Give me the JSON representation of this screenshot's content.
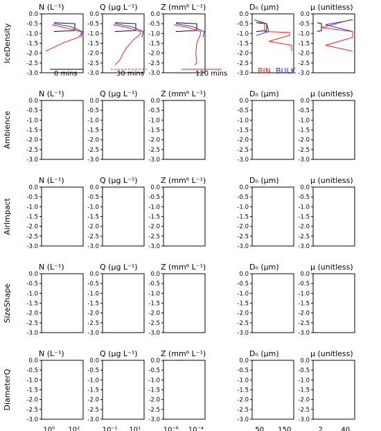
{
  "figure": {
    "rows": [
      {
        "label": "IceDensity"
      },
      {
        "label": "Ambience"
      },
      {
        "label": "AirImpact"
      },
      {
        "label": "SizeShape"
      },
      {
        "label": "DiameterQ"
      }
    ],
    "columns": [
      {
        "title": "N (L⁻¹)",
        "x_ticks": [
          "10⁰",
          "10²"
        ]
      },
      {
        "title": "Q (μg L⁻¹)",
        "x_ticks": [
          "10⁻¹",
          "10¹"
        ]
      },
      {
        "title": "Z (mm⁶ L⁻¹)",
        "x_ticks": [
          "10⁻⁶",
          "10⁻⁴"
        ]
      },
      {
        "title": "D₀ (μm)",
        "x_ticks": [
          "50",
          "150"
        ]
      },
      {
        "title": "μ (unitless)",
        "x_ticks": [
          "2",
          "40"
        ]
      }
    ],
    "legend": {
      "time_labels": [
        "0 mins",
        "30 mins",
        "120 mins"
      ],
      "scheme_labels": [
        "BIN",
        "BULK"
      ]
    }
  },
  "chart_data": {
    "type": "line",
    "y_axis": {
      "ylim": [
        -3.0,
        0.0
      ],
      "ticks": [
        "0.0",
        "-0.5",
        "-1.0",
        "-1.5",
        "-2.0",
        "-2.5",
        "-3.0"
      ]
    },
    "series_styles": [
      {
        "name": "BIN",
        "color": "#ee2222"
      },
      {
        "name": "BULK",
        "color": "#2233ee"
      }
    ],
    "time_colors": {
      "0 mins": "#000000"
    },
    "panels": [
      {
        "row": "IceDensity",
        "col": "N",
        "bin_120": {
          "x": [
            0.25,
            0.55,
            0.95,
            0.95,
            0.88,
            0.55,
            0.25,
            0.1
          ],
          "y": [
            -0.55,
            -0.7,
            -0.9,
            -1.05,
            -1.2,
            -1.45,
            -1.75,
            -1.9
          ]
        },
        "bulk_120": {
          "x": [
            0.3,
            0.7,
            0.98,
            0.95
          ],
          "y": [
            -0.5,
            -0.65,
            -0.9,
            -1.2
          ]
        },
        "bin_0": {
          "x": [
            0.3,
            0.8,
            0.8,
            0.3
          ],
          "y": [
            -0.45,
            -0.5,
            -0.85,
            -0.9
          ]
        }
      },
      {
        "row": "IceDensity",
        "col": "Q",
        "bin_120": {
          "x": [
            0.25,
            0.6,
            0.92,
            0.9,
            0.75,
            0.55,
            0.4,
            0.3
          ],
          "y": [
            -0.55,
            -0.7,
            -0.9,
            -1.05,
            -1.3,
            -1.8,
            -2.4,
            -2.6
          ]
        },
        "bulk_120": {
          "x": [
            0.3,
            0.7,
            0.98,
            0.95
          ],
          "y": [
            -0.5,
            -0.65,
            -0.9,
            -1.2
          ]
        },
        "bin_0": {
          "x": [
            0.3,
            0.8,
            0.8,
            0.3
          ],
          "y": [
            -0.45,
            -0.5,
            -0.85,
            -0.9
          ]
        }
      },
      {
        "row": "IceDensity",
        "col": "Z",
        "bin_120": {
          "x": [
            0.25,
            0.6,
            0.9,
            0.88,
            0.8,
            0.78,
            0.8,
            0.75
          ],
          "y": [
            -0.55,
            -0.7,
            -0.9,
            -1.1,
            -1.5,
            -2.0,
            -2.5,
            -2.6
          ]
        },
        "bulk_120": {
          "x": [
            0.3,
            0.7,
            0.98,
            0.95
          ],
          "y": [
            -0.5,
            -0.65,
            -0.9,
            -1.2
          ]
        },
        "bin_0": {
          "x": [
            0.3,
            0.8,
            0.8,
            0.3
          ],
          "y": [
            -0.45,
            -0.5,
            -0.85,
            -0.9
          ]
        }
      },
      {
        "row": "IceDensity",
        "col": "D0",
        "bin_120": {
          "x": [
            0.05,
            0.3,
            0.3,
            0.9,
            0.9,
            0.4,
            0.95,
            0.95
          ],
          "y": [
            -0.3,
            -0.5,
            -0.9,
            -0.95,
            -1.1,
            -1.4,
            -1.6,
            -1.9
          ]
        },
        "bulk_120": {
          "x": [
            0.05,
            0.35,
            0.4,
            0.1
          ],
          "y": [
            -0.3,
            -0.5,
            -0.9,
            -1.1
          ]
        },
        "bin_0": {
          "x": [
            0.1,
            0.35,
            0.35,
            0.1
          ],
          "y": [
            -0.45,
            -0.5,
            -0.85,
            -0.9
          ]
        }
      },
      {
        "row": "IceDensity",
        "col": "mu",
        "bin_120": {
          "x": [
            0.9,
            0.2,
            0.95,
            0.95,
            0.3,
            0.95
          ],
          "y": [
            -0.3,
            -0.7,
            -0.9,
            -1.2,
            -1.6,
            -1.9
          ]
        },
        "bulk_120": {
          "x": [
            0.95,
            0.3,
            0.95,
            0.95
          ],
          "y": [
            -0.3,
            -0.55,
            -0.9,
            -1.1
          ]
        },
        "bin_0": {
          "x": [
            0.1,
            0.2,
            0.2,
            0.1
          ],
          "y": [
            -0.45,
            -0.5,
            -0.85,
            -0.9
          ]
        }
      }
    ]
  }
}
